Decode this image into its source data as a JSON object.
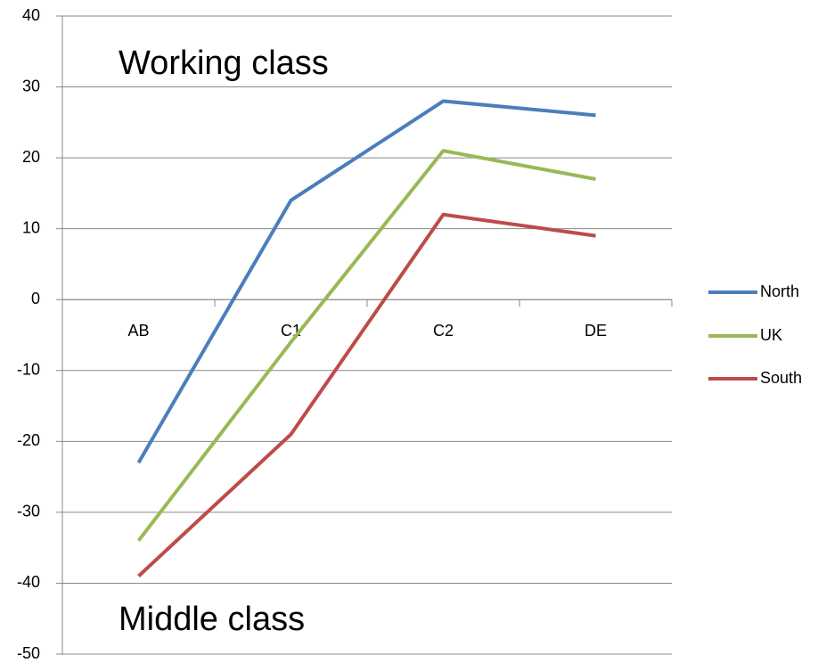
{
  "chart_data": {
    "type": "line",
    "annotations": [
      "Working class",
      "Middle class"
    ],
    "categories": [
      "AB",
      "C1",
      "C2",
      "DE"
    ],
    "series": [
      {
        "name": "North",
        "color": "#4a7ebb",
        "values": [
          -23,
          14,
          28,
          26
        ]
      },
      {
        "name": "UK",
        "color": "#98b954",
        "values": [
          -34,
          -6,
          21,
          17
        ]
      },
      {
        "name": "South",
        "color": "#be4b48",
        "values": [
          -39,
          -19,
          12,
          9
        ]
      }
    ],
    "ylim": [
      -50,
      40
    ],
    "yticks": [
      -50,
      -40,
      -30,
      -20,
      -10,
      0,
      10,
      20,
      30,
      40
    ],
    "grid": true,
    "legend": "right"
  }
}
